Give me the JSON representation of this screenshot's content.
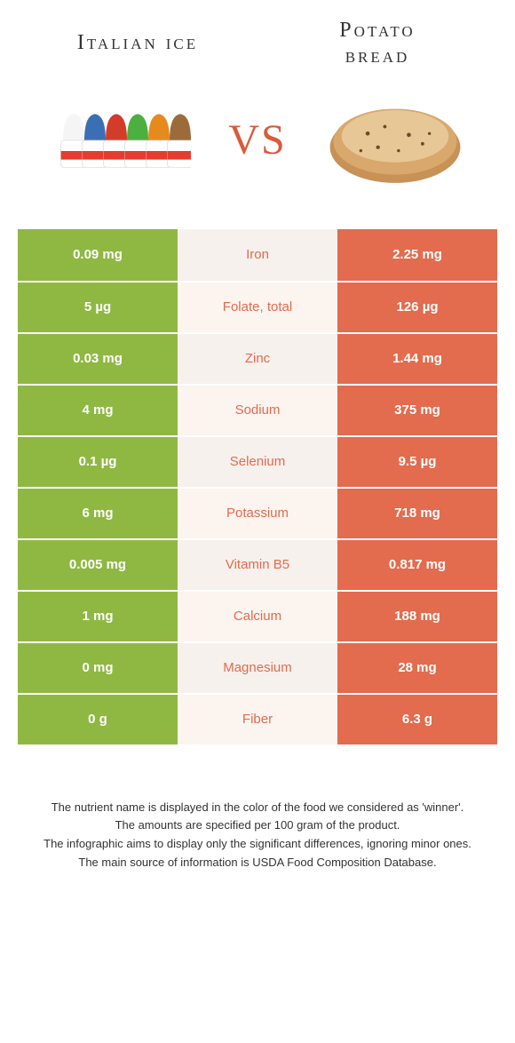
{
  "titles": {
    "left": "Italian ice",
    "right_line1": "Potato",
    "right_line2": "bread"
  },
  "vs": "VS",
  "colors": {
    "left": "#8fb843",
    "right": "#e36b4e",
    "mid_bg_a": "#f6f1ed",
    "mid_bg_b": "#fbf4ef"
  },
  "rows": [
    {
      "left": "0.09 mg",
      "name": "Iron",
      "right": "2.25 mg",
      "winner": "right"
    },
    {
      "left": "5 µg",
      "name": "Folate, total",
      "right": "126 µg",
      "winner": "right"
    },
    {
      "left": "0.03 mg",
      "name": "Zinc",
      "right": "1.44 mg",
      "winner": "right"
    },
    {
      "left": "4 mg",
      "name": "Sodium",
      "right": "375 mg",
      "winner": "right"
    },
    {
      "left": "0.1 µg",
      "name": "Selenium",
      "right": "9.5 µg",
      "winner": "right"
    },
    {
      "left": "6 mg",
      "name": "Potassium",
      "right": "718 mg",
      "winner": "right"
    },
    {
      "left": "0.005 mg",
      "name": "Vitamin B5",
      "right": "0.817 mg",
      "winner": "right"
    },
    {
      "left": "1 mg",
      "name": "Calcium",
      "right": "188 mg",
      "winner": "right"
    },
    {
      "left": "0 mg",
      "name": "Magnesium",
      "right": "28 mg",
      "winner": "right"
    },
    {
      "left": "0 g",
      "name": "Fiber",
      "right": "6.3 g",
      "winner": "right"
    }
  ],
  "footer": {
    "l1": "The nutrient name is displayed in the color of the food we considered as 'winner'.",
    "l2": "The amounts are specified per 100 gram of the product.",
    "l3": "The infographic aims to display only the significant differences, ignoring minor ones.",
    "l4": "The main source of information is USDA Food Composition Database."
  }
}
